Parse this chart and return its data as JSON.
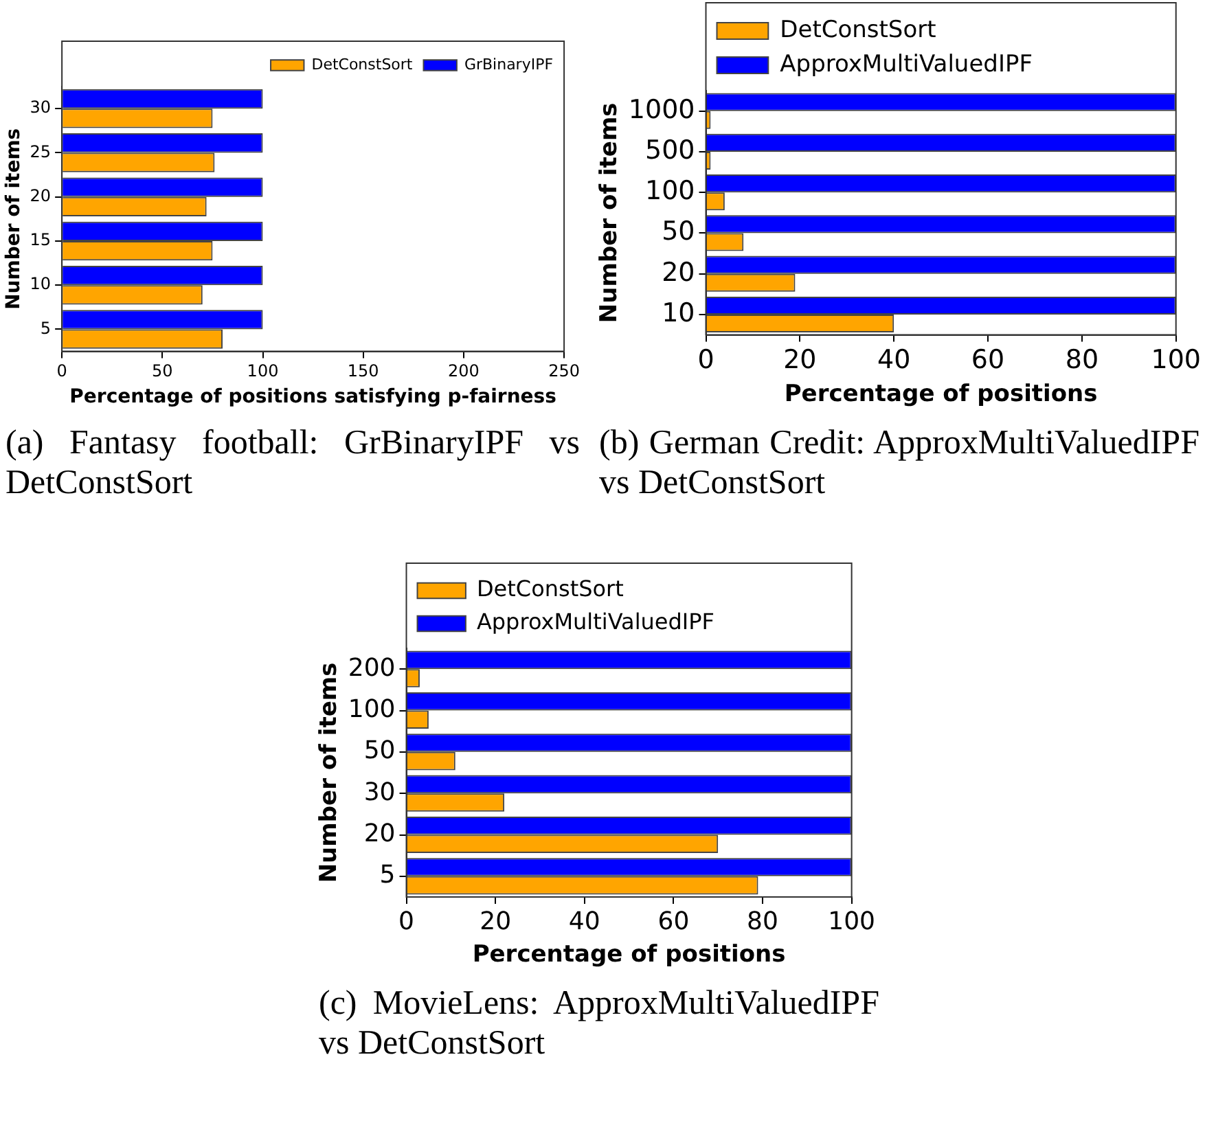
{
  "chart_data": [
    {
      "type": "bar",
      "orientation": "horizontal",
      "ylabel": "Number of items",
      "xlabel": "Percentage of positions satisfying p-fairness",
      "categories": [
        "30",
        "25",
        "20",
        "15",
        "10",
        "5"
      ],
      "xlim": [
        0,
        250
      ],
      "xticks": [
        0,
        50,
        100,
        150,
        200,
        250
      ],
      "legend": "top right",
      "annotations": [
        "(a) Fantasy football: GrBinaryIPF vs DetConstSort"
      ],
      "series": [
        {
          "name": "DetConstSort",
          "color": "#ffa500",
          "values": [
            75,
            76,
            72,
            75,
            70,
            80
          ]
        },
        {
          "name": "GrBinaryIPF",
          "color": "#0000ff",
          "values": [
            100,
            100,
            100,
            100,
            100,
            100
          ]
        }
      ]
    },
    {
      "type": "bar",
      "orientation": "horizontal",
      "ylabel": "Number of items",
      "xlabel": "Percentage of positions",
      "categories": [
        "1000",
        "500",
        "100",
        "50",
        "20",
        "10"
      ],
      "xlim": [
        0,
        100
      ],
      "xticks": [
        0,
        20,
        40,
        60,
        80,
        100
      ],
      "legend": "top left",
      "annotations": [
        "(b) German Credit: ApproxMultiValuedIPF vs DetConstSort"
      ],
      "series": [
        {
          "name": "DetConstSort",
          "color": "#ffa500",
          "values": [
            1,
            1,
            4,
            8,
            19,
            40
          ]
        },
        {
          "name": "ApproxMultiValuedIPF",
          "color": "#0000ff",
          "values": [
            100,
            100,
            100,
            100,
            100,
            100
          ]
        }
      ]
    },
    {
      "type": "bar",
      "orientation": "horizontal",
      "ylabel": "Number of items",
      "xlabel": "Percentage of positions",
      "categories": [
        "200",
        "100",
        "50",
        "30",
        "20",
        "5"
      ],
      "xlim": [
        0,
        100
      ],
      "xticks": [
        0,
        20,
        40,
        60,
        80,
        100
      ],
      "legend": "top left",
      "annotations": [
        "(c) MovieLens: ApproxMultiValuedIPF vs DetConstSort"
      ],
      "series": [
        {
          "name": "DetConstSort",
          "color": "#ffa500",
          "values": [
            3,
            5,
            11,
            22,
            70,
            79
          ]
        },
        {
          "name": "ApproxMultiValuedIPF",
          "color": "#0000ff",
          "values": [
            100,
            100,
            100,
            100,
            100,
            100
          ]
        }
      ]
    }
  ]
}
